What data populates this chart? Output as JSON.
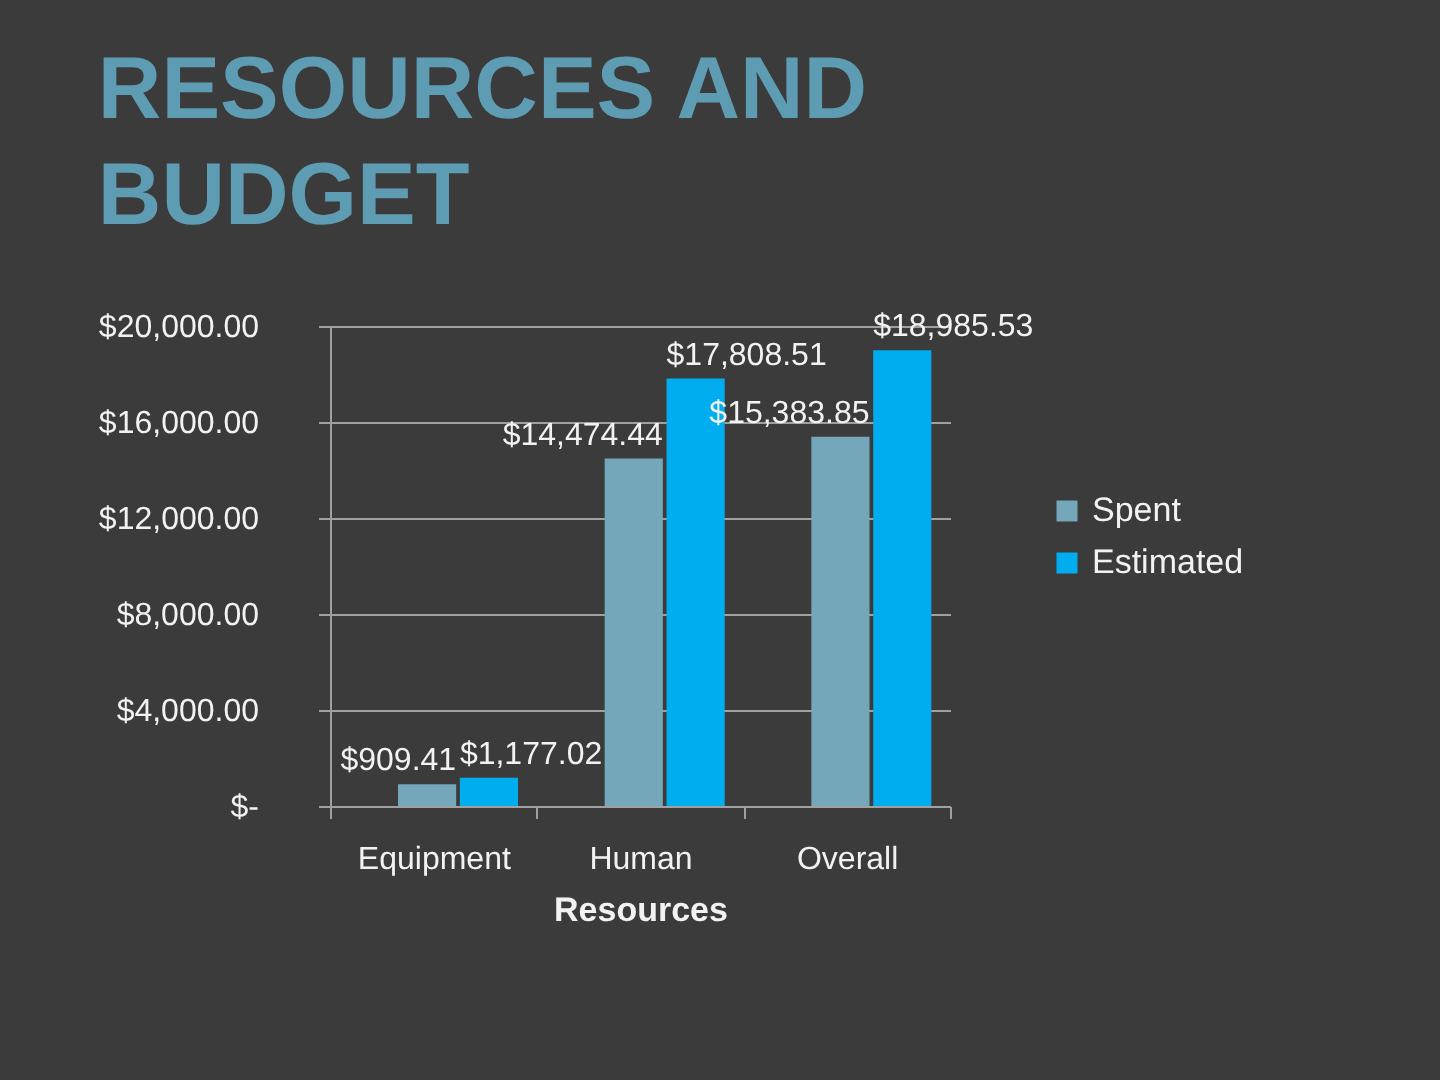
{
  "chart_data": {
    "type": "bar",
    "title": "RESOURCES AND BUDGET",
    "xlabel": "Resources",
    "categories": [
      "Equipment",
      "Human",
      "Overall"
    ],
    "series": [
      {
        "name": "Spent",
        "color": "#74a7b9",
        "values": [
          909.41,
          14474.44,
          15383.85
        ],
        "value_labels": [
          "$909.41",
          "$14,474.44",
          "$15,383.85"
        ]
      },
      {
        "name": "Estimated",
        "color": "#00aeef",
        "values": [
          1177.02,
          17808.51,
          18985.53
        ],
        "value_labels": [
          "$1,177.02",
          "$17,808.51",
          "$18,985.53"
        ]
      }
    ],
    "ylim": [
      0,
      20000
    ],
    "yticks": [
      {
        "value": 0,
        "label": "$-"
      },
      {
        "value": 4000,
        "label": "$4,000.00"
      },
      {
        "value": 8000,
        "label": "$8,000.00"
      },
      {
        "value": 12000,
        "label": "$12,000.00"
      },
      {
        "value": 16000,
        "label": "$16,000.00"
      },
      {
        "value": 20000,
        "label": "$20,000.00"
      }
    ],
    "grid": "y",
    "legend": "right"
  }
}
